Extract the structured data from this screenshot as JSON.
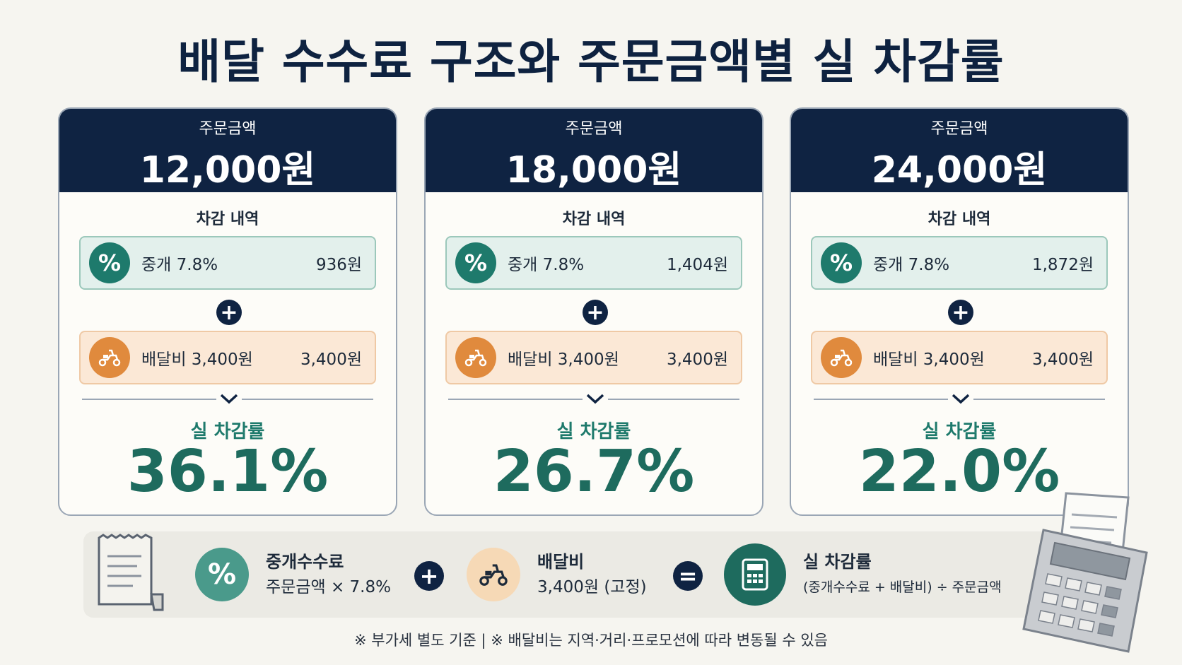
{
  "title": "배달 수수료 구조와 주문금액별 실 차감률",
  "cards": [
    {
      "label": "주문금액",
      "amount": "12,000원",
      "sub": "차감 내역",
      "fee_name": "중개 7.8%",
      "fee_value": "936원",
      "delivery_name": "배달비 3,400원",
      "delivery_value": "3,400원",
      "rate_label": "실 차감률",
      "rate": "36.1%"
    },
    {
      "label": "주문금액",
      "amount": "18,000원",
      "sub": "차감 내역",
      "fee_name": "중개 7.8%",
      "fee_value": "1,404원",
      "delivery_name": "배달비 3,400원",
      "delivery_value": "3,400원",
      "rate_label": "실 차감률",
      "rate": "26.7%"
    },
    {
      "label": "주문금액",
      "amount": "24,000원",
      "sub": "차감 내역",
      "fee_name": "중개 7.8%",
      "fee_value": "1,872원",
      "delivery_name": "배달비 3,400원",
      "delivery_value": "3,400원",
      "rate_label": "실 차감률",
      "rate": "22.0%"
    }
  ],
  "icons": {
    "percent": "%",
    "plus": "+",
    "equals": "="
  },
  "formula": {
    "fee_title": "중개수수료",
    "fee_desc": "주문금액 × 7.8%",
    "delivery_title": "배달비",
    "delivery_desc": "3,400원 (고정)",
    "result_title": "실 차감률",
    "result_desc": "(중개수수료 + 배달비) ÷ 주문금액"
  },
  "footnote": "※ 부가세 별도 기준   |   ※ 배달비는 지역·거리·프로모션에 따라 변동될 수 있음",
  "colors": {
    "navy": "#0f2342",
    "teal": "#1e7a6c",
    "orange": "#e08a3d",
    "background": "#f6f5f0"
  }
}
